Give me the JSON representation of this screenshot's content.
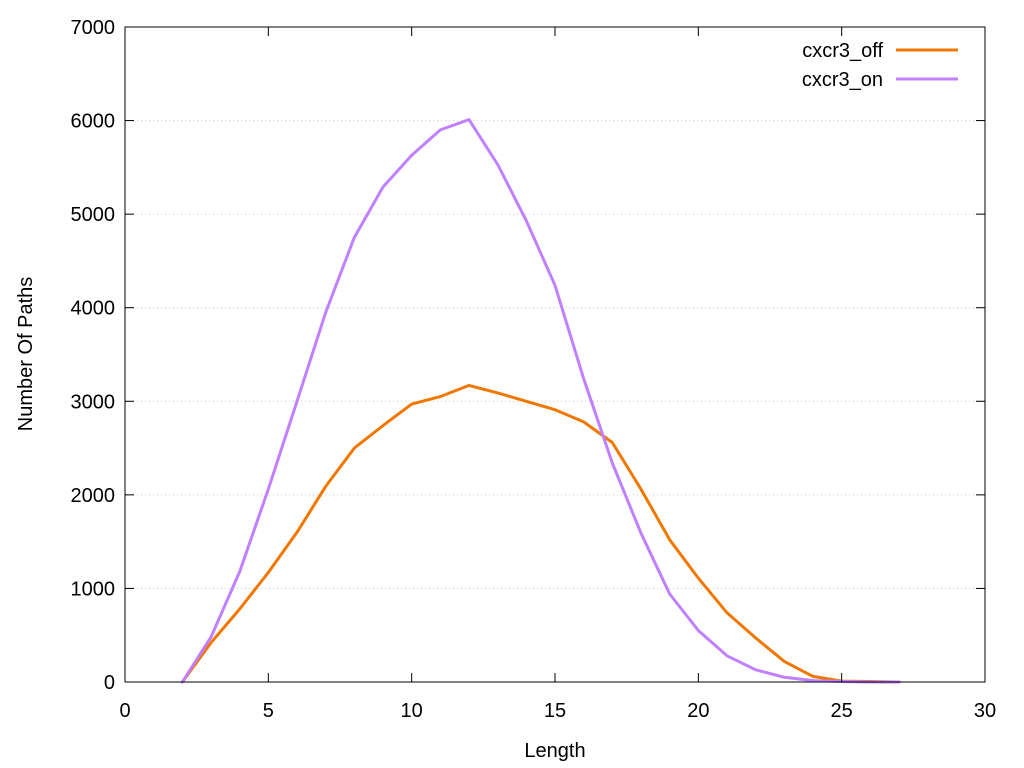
{
  "chart_data": {
    "type": "line",
    "xlabel": "Length",
    "ylabel": "Number Of Paths",
    "xlim": [
      0,
      30
    ],
    "ylim": [
      0,
      7000
    ],
    "xticks": [
      0,
      5,
      10,
      15,
      20,
      25,
      30
    ],
    "yticks": [
      0,
      1000,
      2000,
      3000,
      4000,
      5000,
      6000,
      7000
    ],
    "grid": "horizontal-dotted",
    "legend_position": "top-right",
    "series": [
      {
        "name": "cxcr3_off",
        "color": "#f07800",
        "x": [
          2,
          3,
          4,
          5,
          6,
          7,
          8,
          9,
          10,
          11,
          12,
          13,
          14,
          15,
          16,
          17,
          18,
          19,
          20,
          21,
          22,
          23,
          24,
          25,
          26,
          27
        ],
        "y": [
          0,
          420,
          780,
          1170,
          1600,
          2090,
          2500,
          2740,
          2970,
          3050,
          3170,
          3090,
          3000,
          2910,
          2780,
          2560,
          2060,
          1520,
          1110,
          740,
          470,
          220,
          60,
          10,
          5,
          0
        ]
      },
      {
        "name": "cxcr3_on",
        "color": "#c080ff",
        "x": [
          2,
          3,
          4,
          5,
          6,
          7,
          8,
          9,
          10,
          11,
          12,
          13,
          14,
          15,
          16,
          17,
          18,
          19,
          20,
          21,
          22,
          23,
          24,
          25,
          26,
          27
        ],
        "y": [
          0,
          480,
          1180,
          2060,
          3000,
          3950,
          4750,
          5290,
          5630,
          5900,
          6010,
          5530,
          4930,
          4240,
          3240,
          2340,
          1590,
          940,
          550,
          280,
          130,
          50,
          15,
          5,
          0,
          0
        ]
      }
    ]
  }
}
